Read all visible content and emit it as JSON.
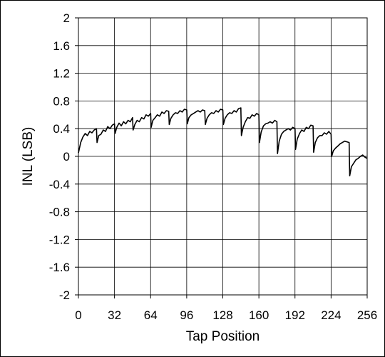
{
  "chart_data": {
    "type": "line",
    "title": "",
    "xlabel": "Tap Position",
    "ylabel": "INL (LSB)",
    "xlim": [
      0,
      256
    ],
    "ylim": [
      -2,
      2
    ],
    "xticks": [
      "0",
      "32",
      "64",
      "96",
      "128",
      "160",
      "192",
      "224",
      "256"
    ],
    "yticks": [
      "2",
      "1.6",
      "1.2",
      "0.8",
      "0.4",
      "0",
      "-0.4",
      "-0.8",
      "-1.2",
      "-1.6",
      "-2"
    ],
    "grid": true,
    "legend": "none",
    "line_color": "#000000",
    "series": [
      {
        "x": [
          0,
          2,
          4,
          6,
          8,
          10,
          12,
          14,
          16,
          16.5,
          18,
          20,
          22,
          24,
          26,
          28,
          30,
          32,
          32.5,
          34,
          36,
          38,
          40,
          42,
          44,
          46,
          48,
          48.5,
          50,
          52,
          54,
          56,
          58,
          60,
          62,
          64,
          64.5,
          66,
          68,
          70,
          72,
          74,
          76,
          78,
          80,
          80.5,
          82,
          84,
          86,
          88,
          90,
          92,
          94,
          96,
          96.5,
          98,
          100,
          102,
          104,
          106,
          108,
          110,
          112,
          112.5,
          114,
          116,
          118,
          120,
          122,
          124,
          126,
          128,
          128.5,
          130,
          132,
          134,
          136,
          138,
          140,
          142,
          144,
          144.5,
          146,
          148,
          150,
          152,
          154,
          156,
          158,
          160,
          160.5,
          162,
          164,
          166,
          168,
          170,
          172,
          174,
          176,
          176.5,
          178,
          180,
          182,
          184,
          186,
          188,
          190,
          192,
          192.5,
          194,
          196,
          198,
          200,
          202,
          204,
          206,
          208,
          208.5,
          210,
          212,
          214,
          216,
          218,
          220,
          222,
          224,
          224.5,
          226,
          228,
          230,
          232,
          234,
          236,
          238,
          240,
          240.5,
          242,
          244,
          246,
          248,
          250,
          252,
          254,
          256
        ],
        "y": [
          0.05,
          0.2,
          0.28,
          0.33,
          0.3,
          0.36,
          0.34,
          0.38,
          0.4,
          0.2,
          0.3,
          0.32,
          0.38,
          0.36,
          0.43,
          0.4,
          0.45,
          0.47,
          0.33,
          0.42,
          0.48,
          0.44,
          0.5,
          0.47,
          0.52,
          0.5,
          0.56,
          0.38,
          0.46,
          0.52,
          0.5,
          0.56,
          0.54,
          0.6,
          0.58,
          0.62,
          0.42,
          0.52,
          0.56,
          0.6,
          0.58,
          0.64,
          0.62,
          0.66,
          0.65,
          0.46,
          0.55,
          0.6,
          0.63,
          0.62,
          0.66,
          0.64,
          0.68,
          0.67,
          0.47,
          0.56,
          0.6,
          0.62,
          0.64,
          0.66,
          0.64,
          0.67,
          0.66,
          0.46,
          0.55,
          0.6,
          0.63,
          0.62,
          0.66,
          0.64,
          0.68,
          0.67,
          0.46,
          0.55,
          0.6,
          0.63,
          0.62,
          0.66,
          0.64,
          0.69,
          0.7,
          0.3,
          0.42,
          0.5,
          0.56,
          0.55,
          0.6,
          0.58,
          0.62,
          0.6,
          0.2,
          0.35,
          0.44,
          0.47,
          0.48,
          0.5,
          0.48,
          0.52,
          0.5,
          0.04,
          0.22,
          0.32,
          0.36,
          0.38,
          0.4,
          0.38,
          0.42,
          0.4,
          0.1,
          0.25,
          0.33,
          0.38,
          0.36,
          0.42,
          0.4,
          0.45,
          0.44,
          0.06,
          0.2,
          0.27,
          0.3,
          0.3,
          0.34,
          0.32,
          0.36,
          0.32,
          0.0,
          0.08,
          0.12,
          0.15,
          0.18,
          0.2,
          0.22,
          0.21,
          0.2,
          -0.28,
          -0.15,
          -0.1,
          -0.05,
          -0.03,
          0.0,
          0.02,
          -0.01,
          -0.03
        ]
      }
    ]
  }
}
